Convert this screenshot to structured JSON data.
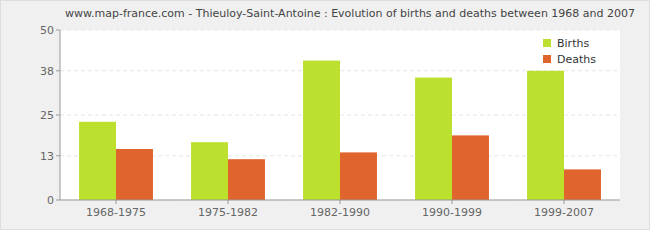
{
  "chart_data": {
    "type": "bar",
    "title": "www.map-france.com - Thieuloy-Saint-Antoine : Evolution of births and deaths between 1968 and 2007",
    "categories": [
      "1968-1975",
      "1975-1982",
      "1982-1990",
      "1990-1999",
      "1999-2007"
    ],
    "series": [
      {
        "name": "Births",
        "color": "#bbe02e",
        "values": [
          23,
          17,
          41,
          36,
          38
        ]
      },
      {
        "name": "Deaths",
        "color": "#e0642e",
        "values": [
          15,
          12,
          14,
          19,
          9
        ]
      }
    ],
    "ylim": [
      0,
      50
    ],
    "yticks": [
      0,
      13,
      25,
      38,
      50
    ],
    "grid": true,
    "legend": "top-right"
  }
}
